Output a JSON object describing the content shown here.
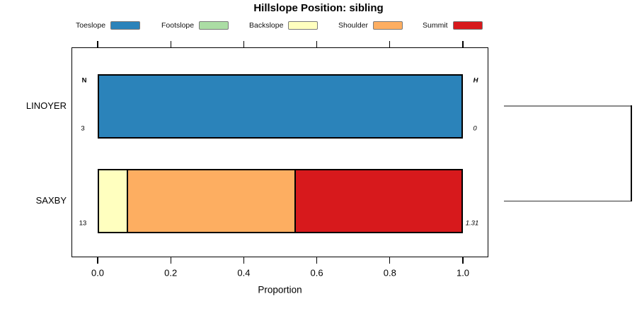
{
  "title": "Hillslope Position: sibling",
  "chart_data": {
    "type": "bar",
    "orientation": "horizontal-stacked",
    "title": "Hillslope Position: sibling",
    "xlabel": "Proportion",
    "xlim": [
      0.0,
      1.0
    ],
    "x_ticks": [
      "0.0",
      "0.2",
      "0.4",
      "0.6",
      "0.8",
      "1.0"
    ],
    "grid": false,
    "legend_position": "top",
    "categories": [
      "LINOYER",
      "SAXBY"
    ],
    "series": [
      {
        "name": "Toeslope",
        "color": "#2B83BA",
        "values": [
          1.0,
          0
        ]
      },
      {
        "name": "Footslope",
        "color": "#ABDDA4",
        "values": [
          0,
          0
        ]
      },
      {
        "name": "Backslope",
        "color": "#FFFFBF",
        "values": [
          0,
          0.077
        ]
      },
      {
        "name": "Shoulder",
        "color": "#FDAE61",
        "values": [
          0,
          0.4615
        ]
      },
      {
        "name": "Summit",
        "color": "#D7191C",
        "values": [
          0,
          0.4615
        ]
      }
    ],
    "annotations": {
      "left_header": "N",
      "right_header": "H",
      "rows": [
        {
          "category": "LINOYER",
          "n": "3",
          "h": "0"
        },
        {
          "category": "SAXBY",
          "n": "13",
          "h": "1.31"
        }
      ]
    },
    "dendrogram": {
      "present": true,
      "side": "right",
      "leaves": [
        "LINOYER",
        "SAXBY"
      ]
    }
  }
}
